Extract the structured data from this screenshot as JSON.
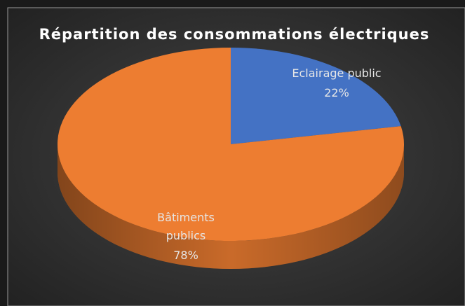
{
  "chart_data": {
    "type": "pie",
    "title": "Répartition des consommations électriques",
    "categories": [
      "Eclairage public",
      "Bâtiments publics"
    ],
    "values": [
      22,
      78
    ],
    "value_labels": [
      "22%",
      "78%"
    ],
    "colors": [
      "#4472c4",
      "#ed7d31"
    ]
  }
}
